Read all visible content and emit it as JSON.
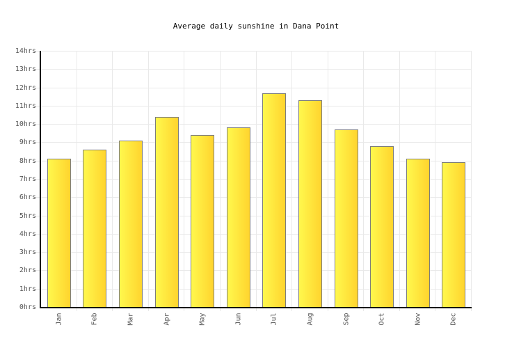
{
  "page": {
    "background": "#ffffff"
  },
  "chart_data": {
    "type": "bar",
    "title": "Average daily sunshine in Dana Point",
    "categories": [
      "Jan",
      "Feb",
      "Mar",
      "Apr",
      "May",
      "Jun",
      "Jul",
      "Aug",
      "Sep",
      "Oct",
      "Nov",
      "Dec"
    ],
    "values": [
      8.1,
      8.6,
      9.1,
      10.4,
      9.4,
      9.8,
      11.7,
      11.3,
      9.7,
      8.8,
      8.1,
      7.9
    ],
    "unit": "hrs",
    "xlabel": "",
    "ylabel": "",
    "ylim": [
      0,
      14
    ],
    "ytick_step": 1,
    "ytick_labels": [
      "0hrs",
      "1hrs",
      "2hrs",
      "3hrs",
      "4hrs",
      "5hrs",
      "6hrs",
      "7hrs",
      "8hrs",
      "9hrs",
      "10hrs",
      "11hrs",
      "12hrs",
      "13hrs",
      "14hrs"
    ],
    "grid": true,
    "legend_position": "none",
    "colors": {
      "background": "#ffffff",
      "title": "#000000",
      "axis": "#000000",
      "gridline": "#e9e9e9",
      "tick_label": "#555555",
      "bar_border": "#7d7d7d",
      "bar_gradient_left": "#fff84d",
      "bar_gradient_right": "#ffd42e"
    }
  }
}
